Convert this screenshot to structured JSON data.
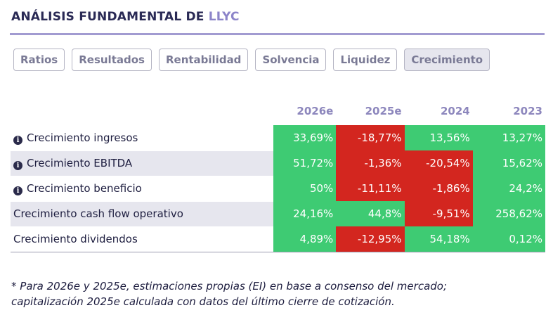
{
  "header": {
    "title_prefix": "ANÁLISIS FUNDAMENTAL DE ",
    "ticker": "LLYC"
  },
  "tabs": [
    {
      "label": "Ratios",
      "active": false
    },
    {
      "label": "Resultados",
      "active": false
    },
    {
      "label": "Rentabilidad",
      "active": false
    },
    {
      "label": "Solvencia",
      "active": false
    },
    {
      "label": "Liquidez",
      "active": false
    },
    {
      "label": "Crecimiento",
      "active": true
    }
  ],
  "table": {
    "columns": [
      "2026e",
      "2025e",
      "2024",
      "2023"
    ],
    "rows": [
      {
        "label": "Crecimiento ingresos",
        "info": true,
        "values": [
          {
            "text": "33,69%",
            "sign": "pos"
          },
          {
            "text": "-18,77%",
            "sign": "neg"
          },
          {
            "text": "13,56%",
            "sign": "pos"
          },
          {
            "text": "13,27%",
            "sign": "pos"
          }
        ]
      },
      {
        "label": "Crecimiento EBITDA",
        "info": true,
        "values": [
          {
            "text": "51,72%",
            "sign": "pos"
          },
          {
            "text": "-1,36%",
            "sign": "neg"
          },
          {
            "text": "-20,54%",
            "sign": "neg"
          },
          {
            "text": "15,62%",
            "sign": "pos"
          }
        ]
      },
      {
        "label": "Crecimiento beneficio",
        "info": true,
        "values": [
          {
            "text": "50%",
            "sign": "pos"
          },
          {
            "text": "-11,11%",
            "sign": "neg"
          },
          {
            "text": "-1,86%",
            "sign": "neg"
          },
          {
            "text": "24,2%",
            "sign": "pos"
          }
        ]
      },
      {
        "label": "Crecimiento cash flow operativo",
        "info": false,
        "values": [
          {
            "text": "24,16%",
            "sign": "pos"
          },
          {
            "text": "44,8%",
            "sign": "pos"
          },
          {
            "text": "-9,51%",
            "sign": "neg"
          },
          {
            "text": "258,62%",
            "sign": "pos"
          }
        ]
      },
      {
        "label": "Crecimiento dividendos",
        "info": false,
        "values": [
          {
            "text": "4,89%",
            "sign": "pos"
          },
          {
            "text": "-12,95%",
            "sign": "neg"
          },
          {
            "text": "54,18%",
            "sign": "pos"
          },
          {
            "text": "0,12%",
            "sign": "pos"
          }
        ]
      }
    ]
  },
  "footnote": {
    "line1": "* Para 2026e y 2025e, estimaciones propias (EI) en base a consenso del mercado;",
    "line2": "capitalización 2025e calculada con datos del último cierre de cotización."
  },
  "colors": {
    "positive": "#3ecb73",
    "negative": "#d3261f",
    "accent": "#a29bd1"
  }
}
